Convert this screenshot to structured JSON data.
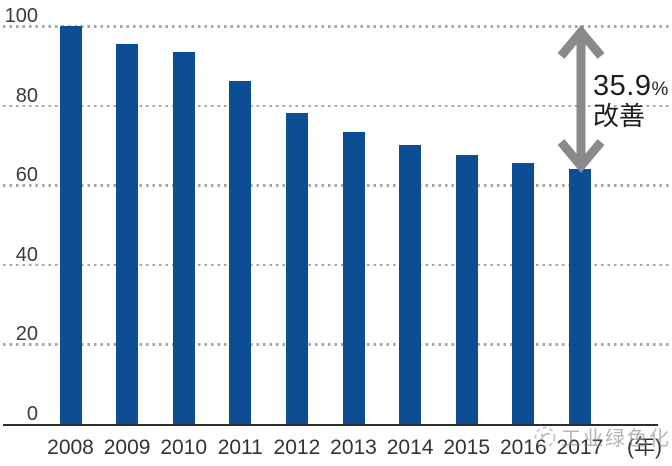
{
  "chart_data": {
    "type": "bar",
    "title": "",
    "categories": [
      "2008",
      "2009",
      "2010",
      "2011",
      "2012",
      "2013",
      "2014",
      "2015",
      "2016",
      "2017"
    ],
    "values": [
      100,
      95.5,
      93.5,
      86.3,
      78.2,
      73.4,
      70.1,
      67.6,
      65.7,
      64.1
    ],
    "xlabel": "(年)",
    "ylabel": "",
    "ylim": [
      0,
      100
    ],
    "yticks": [
      0,
      20,
      40,
      60,
      80,
      100
    ],
    "grid": "horizontal-dotted",
    "legend": "none",
    "bar_color": "#0d4d93",
    "annotation": {
      "value": "35.9",
      "unit": "%",
      "label": "改善",
      "arrow": "vertical double-headed arrow from 100 gridline down to top of 2017 bar"
    }
  },
  "annotation": {
    "value": "35.9",
    "unit": "%",
    "label": "改善"
  },
  "x_axis_unit": "(年)",
  "watermark": {
    "text": "工业绿色化",
    "logo": "circle-logo"
  },
  "colors": {
    "bar": "#0d4d93",
    "arrow": "#8a8a8a",
    "grid": "#a6a6a6",
    "axis": "#2e2e2e",
    "tick_text": "#3c3c3c",
    "annotation_text": "#1e1e1e",
    "watermark": "#848c86"
  }
}
